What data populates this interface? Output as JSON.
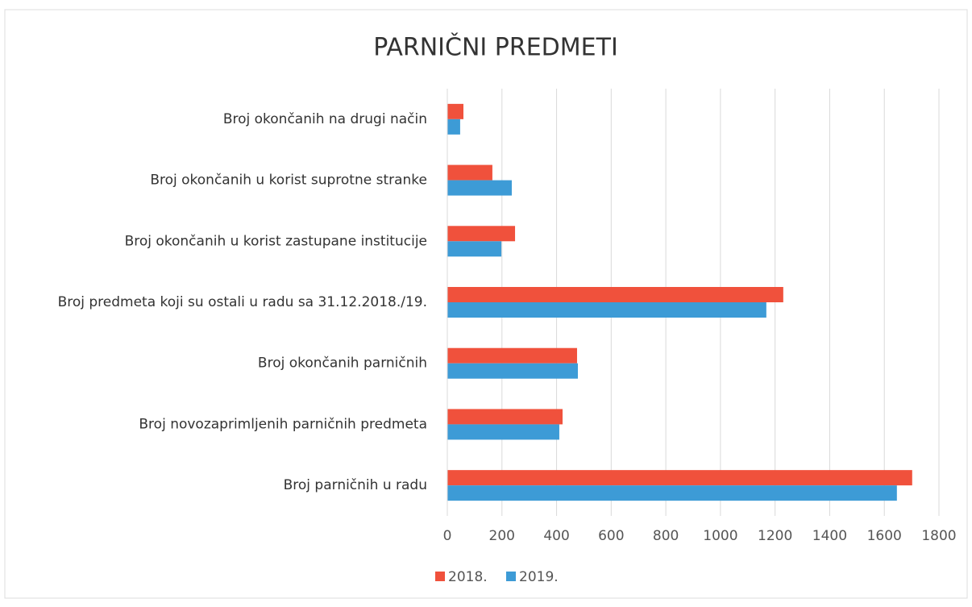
{
  "chart_data": {
    "type": "hbar",
    "title": "PARNIČNI PREDMETI",
    "categories": [
      "Broj okončanih na drugi način",
      "Broj okončanih u korist suprotne stranke",
      "Broj okončanih u korist zastupane institucije",
      "Broj predmeta koji su ostali u radu sa 31.12.2018./19.",
      "Broj okončanih parničnih",
      "Broj novozaprimljenih parničnih predmeta",
      "Broj parničnih u radu"
    ],
    "series": [
      {
        "name": "2018.",
        "color": "#f0513c",
        "values": [
          59,
          165,
          248,
          1230,
          475,
          422,
          1702
        ]
      },
      {
        "name": "2019.",
        "color": "#3d9bd6",
        "values": [
          47,
          236,
          198,
          1168,
          478,
          410,
          1646
        ]
      }
    ],
    "xlim": [
      0,
      1800
    ],
    "xticks": [
      0,
      200,
      400,
      600,
      800,
      1000,
      1200,
      1400,
      1600,
      1800
    ],
    "grid": true,
    "legend": "bottom"
  }
}
